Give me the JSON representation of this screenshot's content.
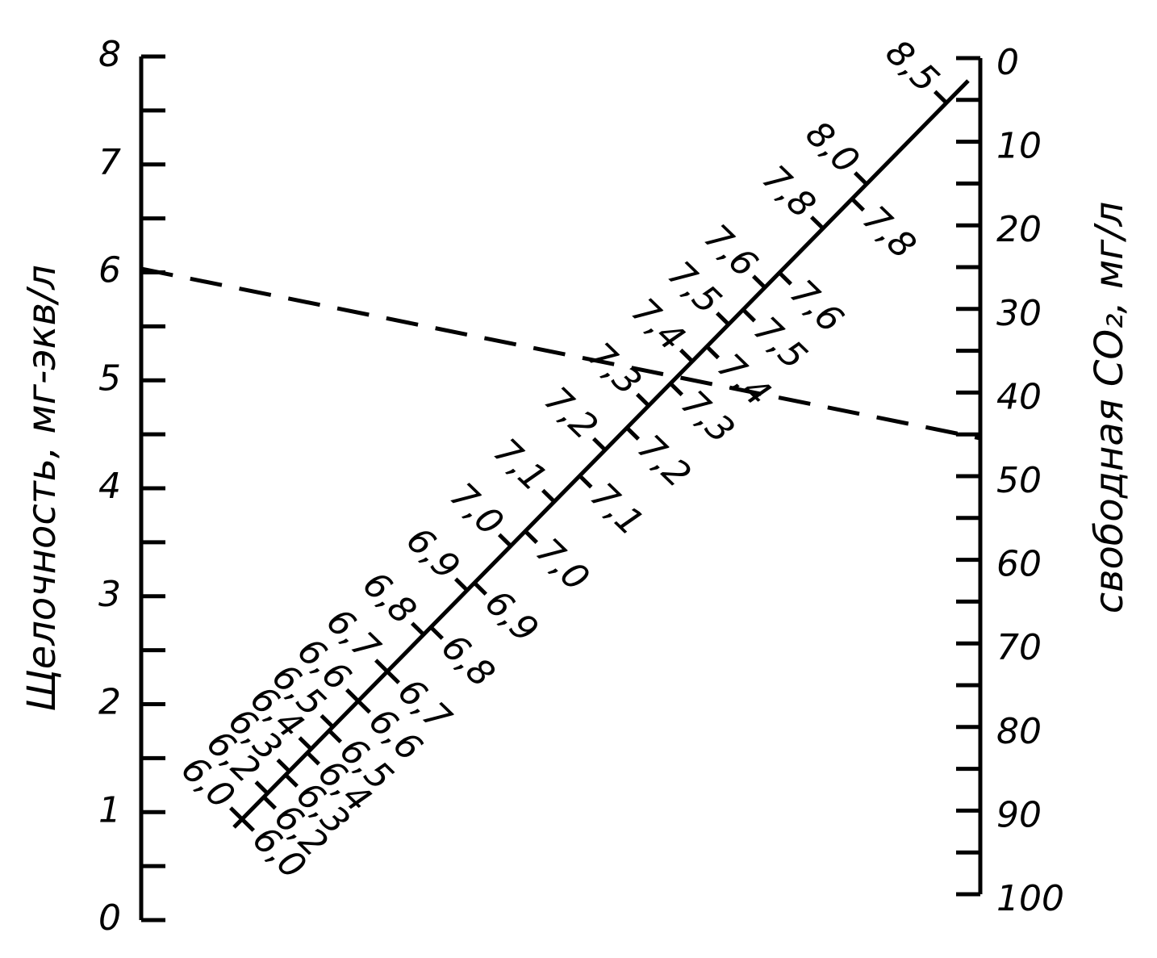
{
  "left_axis": {
    "title": "Щелочность, мг-экв/л",
    "ticks": [
      "0",
      "1",
      "2",
      "3",
      "4",
      "5",
      "6",
      "7",
      "8"
    ]
  },
  "right_axis": {
    "title": "свободная CO₂, мг/л",
    "ticks": [
      "0",
      "10",
      "20",
      "30",
      "40",
      "50",
      "60",
      "70",
      "80",
      "90",
      "100"
    ]
  },
  "ph_scale": {
    "upper_labels": [
      "6,0",
      "6,2",
      "6,3",
      "6,4",
      "6,5",
      "6,6",
      "6,7",
      "6,8",
      "6,9",
      "7,0",
      "7,1",
      "7,2",
      "7,3",
      "7,4",
      "7,5",
      "7,6",
      "7,8",
      "8,0",
      "8,5"
    ],
    "lower_labels": [
      "6,0",
      "6,2",
      "6,3",
      "6,4",
      "6,5",
      "6,6",
      "6,7",
      "6,8",
      "6,9",
      "7,0",
      "7,1",
      "7,2",
      "7,3",
      "7,4",
      "7,5",
      "7,6",
      "7,8"
    ]
  }
}
